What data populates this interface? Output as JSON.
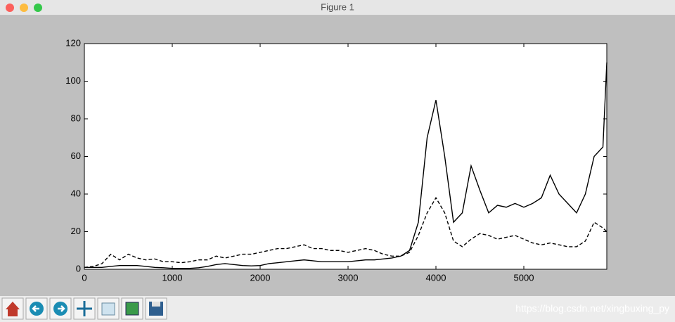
{
  "window": {
    "title": "Figure 1"
  },
  "watermark": "https://blog.csdn.net/xingbuxing_py",
  "chart_data": {
    "type": "line",
    "x": [
      0,
      100,
      200,
      300,
      400,
      500,
      600,
      700,
      800,
      900,
      1000,
      1100,
      1200,
      1300,
      1400,
      1500,
      1600,
      1700,
      1800,
      1900,
      2000,
      2100,
      2200,
      2300,
      2400,
      2500,
      2600,
      2700,
      2800,
      2900,
      3000,
      3100,
      3200,
      3300,
      3400,
      3500,
      3600,
      3700,
      3800,
      3900,
      4000,
      4100,
      4200,
      4300,
      4400,
      4500,
      4600,
      4700,
      4800,
      4900,
      5000,
      5100,
      5200,
      5300,
      5400,
      5500,
      5600,
      5700,
      5800,
      5900,
      5944
    ],
    "series": [
      {
        "color": "#000000",
        "linestyle": "solid",
        "values": [
          1,
          1,
          1,
          1.5,
          2,
          2,
          2,
          1.5,
          1,
          0.8,
          0.5,
          0.5,
          0.5,
          0.8,
          1.5,
          2.5,
          3,
          2.5,
          2,
          1.8,
          2,
          3,
          3.5,
          4,
          4.5,
          5,
          4.5,
          4,
          4,
          4,
          4,
          4.5,
          5,
          5,
          5.5,
          6,
          7,
          10,
          25,
          70,
          90,
          60,
          25,
          30,
          55,
          42,
          30,
          34,
          33,
          35,
          33,
          35,
          38,
          50,
          40,
          35,
          30,
          40,
          60,
          65,
          110
        ]
      },
      {
        "color": "#000000",
        "linestyle": "dashed",
        "values": [
          1,
          1.5,
          3,
          8,
          5,
          8,
          6,
          5,
          5.5,
          4,
          4,
          3.5,
          4,
          5,
          5,
          7,
          6,
          7,
          8,
          8,
          9,
          10,
          11,
          11,
          12,
          13,
          11,
          11,
          10,
          10,
          9,
          10,
          11,
          10,
          8,
          7,
          7,
          9,
          18,
          30,
          38,
          30,
          15,
          12,
          16,
          19,
          18,
          16,
          17,
          18,
          16,
          14,
          13,
          14,
          13,
          12,
          12,
          15,
          25,
          22,
          20
        ]
      }
    ],
    "xlim": [
      0,
      5944
    ],
    "ylim": [
      0,
      120
    ],
    "xticks": [
      0,
      1000,
      2000,
      3000,
      4000,
      5000
    ],
    "yticks": [
      0,
      20,
      40,
      60,
      80,
      100,
      120
    ],
    "grid": false
  }
}
